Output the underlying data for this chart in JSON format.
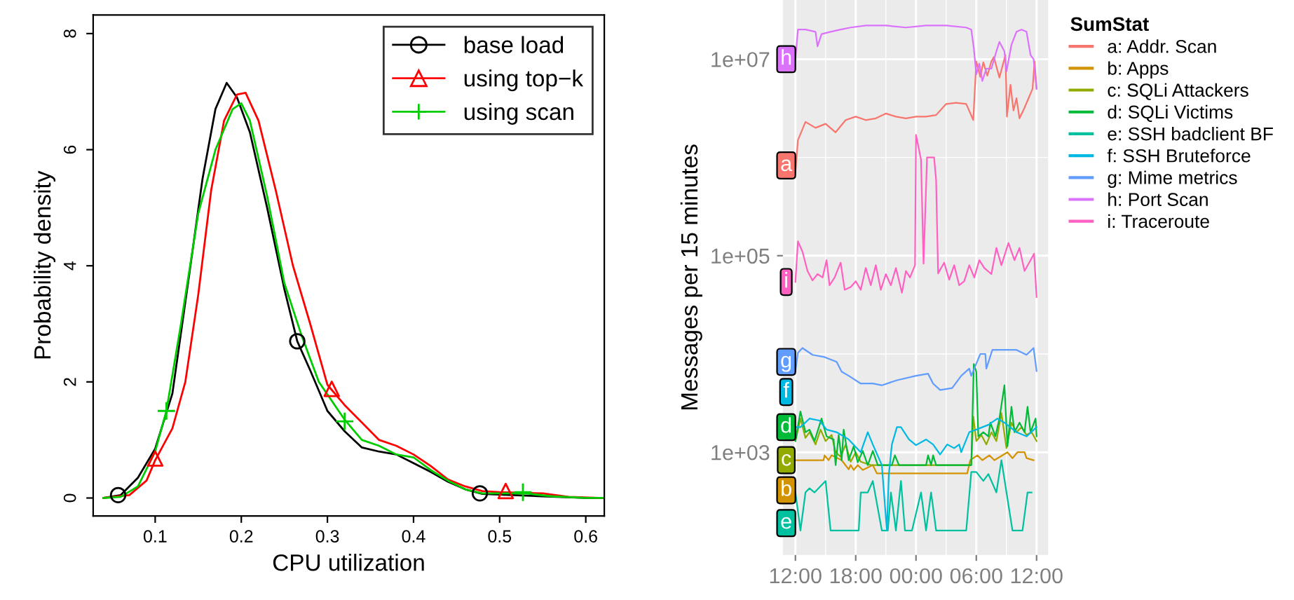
{
  "chart_data": [
    {
      "type": "line",
      "xlabel": "CPU utilization",
      "ylabel": "Probability density",
      "xlim": [
        0.028,
        0.6215
      ],
      "ylim": [
        -0.31,
        8.32
      ],
      "xticks": [
        0.1,
        0.2,
        0.3,
        0.4,
        0.5,
        0.6
      ],
      "yticks": [
        0,
        2,
        4,
        6,
        8
      ],
      "grid": false,
      "legend": "top right",
      "series": [
        {
          "name": "base load",
          "color": "#000000",
          "x": [
            0.04,
            0.06,
            0.08,
            0.1,
            0.12,
            0.14,
            0.155,
            0.17,
            0.183,
            0.195,
            0.21,
            0.23,
            0.25,
            0.265,
            0.28,
            0.3,
            0.32,
            0.34,
            0.36,
            0.38,
            0.4,
            0.42,
            0.44,
            0.46,
            0.48,
            0.5,
            0.55,
            0.6,
            0.62
          ],
          "values": [
            0,
            0.05,
            0.35,
            0.85,
            1.8,
            3.9,
            5.5,
            6.7,
            7.15,
            6.9,
            6.3,
            5.0,
            3.6,
            2.7,
            2.2,
            1.5,
            1.15,
            0.87,
            0.8,
            0.75,
            0.6,
            0.45,
            0.28,
            0.15,
            0.07,
            0.06,
            0.03,
            0,
            0
          ]
        },
        {
          "name": "using top−k",
          "color": "#ff0000",
          "x": [
            0.04,
            0.07,
            0.09,
            0.1,
            0.12,
            0.135,
            0.15,
            0.165,
            0.18,
            0.195,
            0.205,
            0.22,
            0.24,
            0.26,
            0.28,
            0.3,
            0.32,
            0.34,
            0.36,
            0.38,
            0.4,
            0.42,
            0.44,
            0.46,
            0.48,
            0.5,
            0.55,
            0.58,
            0.62
          ],
          "values": [
            0,
            0.05,
            0.3,
            0.65,
            1.2,
            2.0,
            3.5,
            5.3,
            6.5,
            6.95,
            6.98,
            6.5,
            5.3,
            4.0,
            3.0,
            1.95,
            1.6,
            1.3,
            1.0,
            0.9,
            0.75,
            0.55,
            0.32,
            0.2,
            0.12,
            0.1,
            0.08,
            0.02,
            0
          ]
        },
        {
          "name": "using scan",
          "color": "#00cd00",
          "x": [
            0.04,
            0.06,
            0.08,
            0.1,
            0.113,
            0.13,
            0.15,
            0.17,
            0.19,
            0.2,
            0.21,
            0.23,
            0.25,
            0.27,
            0.29,
            0.32,
            0.34,
            0.36,
            0.38,
            0.4,
            0.42,
            0.44,
            0.46,
            0.48,
            0.5,
            0.53,
            0.56,
            0.6,
            0.62
          ],
          "values": [
            0,
            0.02,
            0.2,
            0.8,
            1.5,
            3.0,
            4.9,
            6.0,
            6.7,
            6.8,
            6.5,
            5.2,
            3.7,
            2.8,
            2.0,
            1.35,
            1.0,
            0.9,
            0.75,
            0.7,
            0.48,
            0.3,
            0.15,
            0.08,
            0.08,
            0.08,
            0.03,
            0,
            0
          ]
        },
        {
          "type": "scatter",
          "marker": "circle",
          "color": "#000000",
          "x": [
            0.057,
            0.265,
            0.477
          ],
          "values": [
            0.05,
            2.7,
            0.08
          ]
        },
        {
          "type": "scatter",
          "marker": "triangle",
          "color": "#ff0000",
          "x": [
            0.1,
            0.305,
            0.507
          ],
          "values": [
            0.68,
            1.88,
            0.12
          ]
        },
        {
          "type": "scatter",
          "marker": "cross",
          "color": "#00cd00",
          "x": [
            0.113,
            0.32,
            0.527
          ],
          "values": [
            1.5,
            1.32,
            0.1
          ]
        }
      ]
    },
    {
      "type": "line",
      "ylabel": "Messages per 15 minutes",
      "log": "y",
      "xlim": [
        "2000-01-01T10:45",
        "2000-01-02T13:09"
      ],
      "ylim": [
        90,
        40000000
      ],
      "xticks": [
        {
          "value": "2000-01-01T12:00",
          "label": "12:00"
        },
        {
          "value": "2000-01-01T18:00",
          "label": "18:00"
        },
        {
          "value": "2000-01-02T00:00",
          "label": "00:00"
        },
        {
          "value": "2000-01-02T06:00",
          "label": "06:00"
        },
        {
          "value": "2000-01-02T12:00",
          "label": "12:00"
        }
      ],
      "yticks": [
        {
          "value": 1000,
          "label": "1e+03"
        },
        {
          "value": 100000,
          "label": "1e+05"
        },
        {
          "value": 10000000,
          "label": "1e+07"
        }
      ],
      "grid": true,
      "legend": "right",
      "legend_title": "SumStat",
      "annotations": [
        {
          "text": "a",
          "x": "2000-01-01T11:05",
          "y": 830000
        },
        {
          "text": "b",
          "x": "2000-01-01T11:05",
          "y": 410
        },
        {
          "text": "c",
          "x": "2000-01-01T11:05",
          "y": 830
        },
        {
          "text": "d",
          "x": "2000-01-01T11:05",
          "y": 1800
        },
        {
          "text": "e",
          "x": "2000-01-01T11:05",
          "y": 190
        },
        {
          "text": "f",
          "x": "2000-01-01T11:05",
          "y": 4100
        },
        {
          "text": "g",
          "x": "2000-01-01T11:05",
          "y": 8300
        },
        {
          "text": "h",
          "x": "2000-01-01T11:05",
          "y": 10000000
        },
        {
          "text": "i",
          "x": "2000-01-01T11:05",
          "y": 54000
        }
      ],
      "series": [
        {
          "name": "a: Addr. Scan",
          "color": "#f8766d",
          "x": [
            "2000-01-01T12:00",
            "2000-01-01T12:15",
            "2000-01-01T13:00",
            "2000-01-01T14:00",
            "2000-01-01T15:00",
            "2000-01-01T16:00",
            "2000-01-01T17:00",
            "2000-01-01T18:00",
            "2000-01-01T19:00",
            "2000-01-01T20:00",
            "2000-01-01T21:00",
            "2000-01-01T22:00",
            "2000-01-01T23:00",
            "2000-01-02T00:00",
            "2000-01-02T01:00",
            "2000-01-02T02:00",
            "2000-01-02T03:00",
            "2000-01-02T04:00",
            "2000-01-02T05:00",
            "2000-01-02T05:42",
            "2000-01-02T06:00",
            "2000-01-02T06:24",
            "2000-01-02T06:42",
            "2000-01-02T07:06",
            "2000-01-02T07:30",
            "2000-01-02T07:45",
            "2000-01-02T08:18",
            "2000-01-02T08:54",
            "2000-01-02T09:03",
            "2000-01-02T09:24",
            "2000-01-02T09:42",
            "2000-01-02T10:00",
            "2000-01-02T10:18",
            "2000-01-02T10:48",
            "2000-01-02T11:12",
            "2000-01-02T11:36",
            "2000-01-02T11:48",
            "2000-01-02T12:00"
          ],
          "values": [
            700000,
            1500000,
            2300000,
            2000000,
            2200000,
            1800000,
            2400000,
            2600000,
            2400000,
            2500000,
            2800000,
            2600000,
            2500000,
            2600000,
            2600000,
            2700000,
            3500000,
            3600000,
            3500000,
            2400000,
            9500000,
            6600000,
            9300000,
            6800000,
            9500000,
            10500000,
            6500000,
            11000000,
            2600000,
            5500000,
            3000000,
            4000000,
            2500000,
            3200000,
            4000000,
            5000000,
            9500000,
            5000000
          ]
        },
        {
          "name": "b: Apps",
          "color": "#d39200",
          "x": [
            "2000-01-01T12:00",
            "2000-01-01T14:48",
            "2000-01-01T14:54",
            "2000-01-01T15:18",
            "2000-01-01T15:36",
            "2000-01-01T16:36",
            "2000-01-01T17:18",
            "2000-01-01T17:30",
            "2000-01-01T17:48",
            "2000-01-01T18:12",
            "2000-01-01T18:42",
            "2000-01-01T19:42",
            "2000-01-01T20:06",
            "2000-01-02T05:06",
            "2000-01-02T05:24",
            "2000-01-02T06:06",
            "2000-01-02T06:36",
            "2000-01-02T07:18",
            "2000-01-02T07:48",
            "2000-01-02T09:06",
            "2000-01-02T09:36",
            "2000-01-02T10:06",
            "2000-01-02T10:48",
            "2000-01-02T11:00",
            "2000-01-02T11:42"
          ],
          "values": [
            830,
            830,
            930,
            830,
            930,
            830,
            670,
            740,
            660,
            740,
            660,
            740,
            610,
            610,
            830,
            930,
            830,
            930,
            830,
            1000,
            870,
            1000,
            1000,
            870,
            830
          ]
        },
        {
          "name": "c: SQLi Attackers",
          "color": "#93aa00",
          "x": [
            "2000-01-01T12:00",
            "2000-01-01T12:30",
            "2000-01-01T13:00",
            "2000-01-01T13:24",
            "2000-01-01T14:00",
            "2000-01-01T14:30",
            "2000-01-01T15:00",
            "2000-01-01T15:36",
            "2000-01-01T16:00",
            "2000-01-01T16:30",
            "2000-01-01T17:00",
            "2000-01-01T17:30",
            "2000-01-01T18:00",
            "2000-01-01T18:30",
            "2000-01-01T19:30",
            "2000-01-01T20:30",
            "2000-01-02T05:30",
            "2000-01-02T05:42",
            "2000-01-02T06:00",
            "2000-01-02T06:30",
            "2000-01-02T07:00",
            "2000-01-02T07:30",
            "2000-01-02T08:00",
            "2000-01-02T08:30",
            "2000-01-02T09:00",
            "2000-01-02T09:30",
            "2000-01-02T10:00",
            "2000-01-02T10:30",
            "2000-01-02T11:00",
            "2000-01-02T11:30",
            "2000-01-02T12:00"
          ],
          "values": [
            1300,
            2200,
            1400,
            1600,
            1200,
            1700,
            1300,
            1500,
            1000,
            900,
            1200,
            800,
            1000,
            800,
            740,
            740,
            740,
            2300,
            1300,
            1500,
            1200,
            1600,
            1300,
            2500,
            1100,
            2000,
            1600,
            1800,
            1500,
            1600,
            1300
          ]
        },
        {
          "name": "d: SQLi Victims",
          "color": "#00ba38",
          "x": [
            "2000-01-01T12:00",
            "2000-01-01T12:30",
            "2000-01-01T13:00",
            "2000-01-01T13:24",
            "2000-01-01T13:54",
            "2000-01-01T14:36",
            "2000-01-01T15:06",
            "2000-01-01T15:48",
            "2000-01-01T16:00",
            "2000-01-01T16:18",
            "2000-01-01T16:36",
            "2000-01-01T16:48",
            "2000-01-01T17:18",
            "2000-01-01T17:48",
            "2000-01-01T18:12",
            "2000-01-01T18:42",
            "2000-01-01T19:12",
            "2000-01-01T19:42",
            "2000-01-01T20:12",
            "2000-01-01T21:36",
            "2000-01-01T21:54",
            "2000-01-01T22:18",
            "2000-01-02T01:00",
            "2000-01-02T01:12",
            "2000-01-02T01:30",
            "2000-01-02T01:42",
            "2000-01-02T02:00",
            "2000-01-02T05:30",
            "2000-01-02T05:45",
            "2000-01-02T06:00",
            "2000-01-02T06:12",
            "2000-01-02T06:42",
            "2000-01-02T07:12",
            "2000-01-02T07:24",
            "2000-01-02T07:54",
            "2000-01-02T08:18",
            "2000-01-02T08:48",
            "2000-01-02T09:06",
            "2000-01-02T09:30",
            "2000-01-02T09:48",
            "2000-01-02T10:18",
            "2000-01-02T10:48",
            "2000-01-02T11:06",
            "2000-01-02T11:24",
            "2000-01-02T11:54",
            "2000-01-02T12:00"
          ],
          "values": [
            1300,
            2600,
            1600,
            1700,
            1300,
            2200,
            1450,
            1350,
            740,
            1500,
            830,
            1700,
            830,
            1150,
            790,
            1030,
            740,
            1030,
            740,
            740,
            930,
            740,
            740,
            930,
            740,
            930,
            740,
            740,
            7900,
            6600,
            1450,
            1600,
            1450,
            2000,
            1450,
            2200,
            4800,
            1150,
            2900,
            1600,
            2000,
            1600,
            2900,
            1600,
            2200,
            1450
          ]
        },
        {
          "name": "e: SSH badclient BF",
          "color": "#00c19f",
          "x": [
            "2000-01-01T12:00",
            "2000-01-01T12:30",
            "2000-01-01T13:00",
            "2000-01-01T13:24",
            "2000-01-01T13:54",
            "2000-01-01T15:00",
            "2000-01-01T15:30",
            "2000-01-01T18:18",
            "2000-01-01T18:30",
            "2000-01-01T19:12",
            "2000-01-01T19:42",
            "2000-01-01T20:36",
            "2000-01-01T21:12",
            "2000-01-01T21:30",
            "2000-01-01T22:00",
            "2000-01-01T22:30",
            "2000-01-01T22:54",
            "2000-01-01T23:36",
            "2000-01-02T00:30",
            "2000-01-02T01:00",
            "2000-01-02T01:30",
            "2000-01-02T02:00",
            "2000-01-02T05:00",
            "2000-01-02T05:30",
            "2000-01-02T06:00",
            "2000-01-02T06:42",
            "2000-01-02T07:12",
            "2000-01-02T08:00",
            "2000-01-02T08:30",
            "2000-01-02T09:36",
            "2000-01-02T10:36",
            "2000-01-02T11:06",
            "2000-01-02T11:30"
          ],
          "values": [
            390,
            160,
            390,
            430,
            390,
            510,
            160,
            160,
            390,
            390,
            510,
            160,
            160,
            390,
            160,
            510,
            160,
            160,
            390,
            160,
            390,
            160,
            160,
            630,
            630,
            510,
            600,
            390,
            830,
            160,
            160,
            390,
            390
          ]
        },
        {
          "name": "f: SSH Bruteforce",
          "color": "#00b9e3",
          "x": [
            "2000-01-01T12:00",
            "2000-01-01T12:30",
            "2000-01-01T13:24",
            "2000-01-01T14:24",
            "2000-01-01T15:06",
            "2000-01-01T16:06",
            "2000-01-01T17:18",
            "2000-01-01T18:30",
            "2000-01-01T19:12",
            "2000-01-01T19:42",
            "2000-01-01T20:36",
            "2000-01-01T21:06",
            "2000-01-01T21:18",
            "2000-01-01T21:36",
            "2000-01-01T22:06",
            "2000-01-01T22:30",
            "2000-01-01T23:18",
            "2000-01-02T00:00",
            "2000-01-02T01:00",
            "2000-01-02T01:42",
            "2000-01-02T02:24",
            "2000-01-02T03:06",
            "2000-01-02T03:48",
            "2000-01-02T04:18",
            "2000-01-02T04:30",
            "2000-01-02T05:18",
            "2000-01-02T06:00",
            "2000-01-02T07:12",
            "2000-01-02T08:06",
            "2000-01-02T08:48",
            "2000-01-02T10:00",
            "2000-01-02T11:00",
            "2000-01-02T12:00"
          ],
          "values": [
            1800,
            1800,
            2200,
            2100,
            1700,
            1600,
            1350,
            1000,
            1600,
            1200,
            740,
            160,
            600,
            1200,
            1800,
            1800,
            1350,
            1180,
            1350,
            1200,
            950,
            1200,
            1100,
            1200,
            1000,
            1600,
            1700,
            1900,
            2200,
            2000,
            1600,
            1450,
            1800
          ]
        },
        {
          "name": "g: Mime metrics",
          "color": "#619cff",
          "x": [
            "2000-01-01T12:00",
            "2000-01-01T12:15",
            "2000-01-01T12:42",
            "2000-01-01T13:42",
            "2000-01-01T14:54",
            "2000-01-01T16:06",
            "2000-01-01T16:36",
            "2000-01-01T17:18",
            "2000-01-01T18:30",
            "2000-01-01T19:42",
            "2000-01-01T20:36",
            "2000-01-01T22:06",
            "2000-01-02T00:00",
            "2000-01-02T01:12",
            "2000-01-02T01:42",
            "2000-01-02T02:24",
            "2000-01-02T03:36",
            "2000-01-02T04:30",
            "2000-01-02T05:18",
            "2000-01-02T05:30",
            "2000-01-02T06:24",
            "2000-01-02T06:54",
            "2000-01-02T07:00",
            "2000-01-02T07:36",
            "2000-01-02T08:48",
            "2000-01-02T10:00",
            "2000-01-02T11:00",
            "2000-01-02T11:42",
            "2000-01-02T12:00"
          ],
          "values": [
            6700,
            10300,
            11500,
            9800,
            9300,
            8300,
            6600,
            6000,
            5000,
            5000,
            4800,
            5400,
            6000,
            6300,
            5000,
            4300,
            4500,
            6000,
            7100,
            6000,
            10000,
            10000,
            7100,
            11000,
            11000,
            11000,
            9800,
            11500,
            6700
          ]
        },
        {
          "name": "h: Port Scan",
          "color": "#db72fb",
          "x": [
            "2000-01-01T12:00",
            "2000-01-01T12:15",
            "2000-01-01T13:00",
            "2000-01-01T14:00",
            "2000-01-01T14:12",
            "2000-01-01T14:36",
            "2000-01-01T15:30",
            "2000-01-01T16:30",
            "2000-01-01T17:30",
            "2000-01-01T19:00",
            "2000-01-01T21:00",
            "2000-01-01T23:00",
            "2000-01-02T01:00",
            "2000-01-02T03:00",
            "2000-01-02T05:00",
            "2000-01-02T05:30",
            "2000-01-02T05:45",
            "2000-01-02T06:00",
            "2000-01-02T06:18",
            "2000-01-02T06:36",
            "2000-01-02T07:00",
            "2000-01-02T07:30",
            "2000-01-02T08:00",
            "2000-01-02T08:18",
            "2000-01-02T08:48",
            "2000-01-02T09:00",
            "2000-01-02T09:30",
            "2000-01-02T10:00",
            "2000-01-02T10:30",
            "2000-01-02T11:00",
            "2000-01-02T11:24",
            "2000-01-02T11:42",
            "2000-01-02T12:00"
          ],
          "values": [
            10000000,
            20000000,
            20000000,
            19000000,
            13500000,
            18000000,
            19000000,
            20000000,
            21000000,
            22000000,
            22000000,
            21000000,
            22000000,
            22000000,
            21000000,
            20000000,
            13000000,
            7000000,
            9000000,
            6000000,
            8000000,
            8000000,
            12000000,
            15000000,
            12000000,
            7500000,
            14000000,
            19000000,
            20000000,
            19000000,
            11000000,
            10000000,
            5000000
          ]
        },
        {
          "name": "i: Traceroute",
          "color": "#ff61c3",
          "x": [
            "2000-01-01T12:00",
            "2000-01-01T12:15",
            "2000-01-01T12:42",
            "2000-01-01T13:12",
            "2000-01-01T13:42",
            "2000-01-01T14:12",
            "2000-01-01T14:42",
            "2000-01-01T15:06",
            "2000-01-01T15:24",
            "2000-01-01T15:54",
            "2000-01-01T16:30",
            "2000-01-01T16:54",
            "2000-01-01T17:30",
            "2000-01-01T18:00",
            "2000-01-01T18:30",
            "2000-01-01T19:00",
            "2000-01-01T19:30",
            "2000-01-01T20:00",
            "2000-01-01T20:30",
            "2000-01-01T21:00",
            "2000-01-01T21:30",
            "2000-01-01T22:00",
            "2000-01-01T22:36",
            "2000-01-01T23:00",
            "2000-01-01T23:24",
            "2000-01-01T23:54",
            "2000-01-02T00:00",
            "2000-01-02T00:30",
            "2000-01-02T00:45",
            "2000-01-02T01:06",
            "2000-01-02T01:48",
            "2000-01-02T02:00",
            "2000-01-02T02:12",
            "2000-01-02T02:48",
            "2000-01-02T03:18",
            "2000-01-02T03:48",
            "2000-01-02T04:18",
            "2000-01-02T04:48",
            "2000-01-02T05:18",
            "2000-01-02T05:48",
            "2000-01-02T06:18",
            "2000-01-02T06:48",
            "2000-01-02T07:30",
            "2000-01-02T08:00",
            "2000-01-02T08:30",
            "2000-01-02T09:12",
            "2000-01-02T09:48",
            "2000-01-02T10:18",
            "2000-01-02T10:48",
            "2000-01-02T11:24",
            "2000-01-02T11:45",
            "2000-01-02T12:00"
          ],
          "values": [
            54000,
            140000,
            110000,
            70000,
            56000,
            65000,
            60000,
            90000,
            50000,
            60000,
            85000,
            45000,
            48000,
            55000,
            45000,
            75000,
            50000,
            80000,
            45000,
            65000,
            50000,
            75000,
            42000,
            70000,
            60000,
            80000,
            1700000,
            950000,
            83000,
            1000000,
            1000000,
            590000,
            66000,
            85000,
            57000,
            80000,
            50000,
            55000,
            80000,
            60000,
            90000,
            75000,
            65000,
            120000,
            80000,
            135000,
            90000,
            120000,
            70000,
            90000,
            105000,
            38000
          ]
        }
      ]
    }
  ]
}
